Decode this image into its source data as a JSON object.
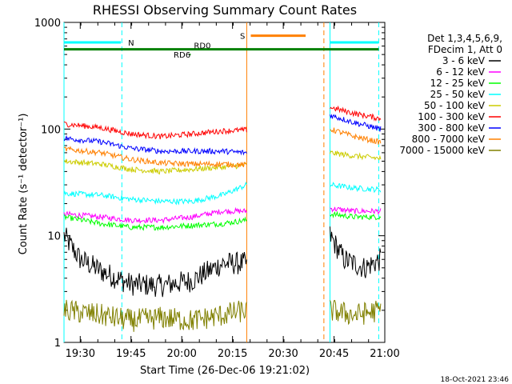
{
  "chart_data": {
    "type": "line",
    "title": "RHESSI Observing Summary Count Rates",
    "xlabel": "Start Time (26-Dec-06 19:21:02)",
    "ylabel": "Count Rate (s⁻¹ detector⁻¹)",
    "yscale": "log",
    "ylim": [
      1,
      1000
    ],
    "xlim_minutes": [
      19.42,
      21.0
    ],
    "x_ticks": [
      {
        "t": 19.5,
        "label": "19:30"
      },
      {
        "t": 19.75,
        "label": "19:45"
      },
      {
        "t": 20.0,
        "label": "20:00"
      },
      {
        "t": 20.25,
        "label": "20:15"
      },
      {
        "t": 20.5,
        "label": "20:30"
      },
      {
        "t": 20.75,
        "label": "20:45"
      },
      {
        "t": 21.0,
        "label": "21:00"
      }
    ],
    "y_ticks": [
      {
        "v": 1,
        "label": "1"
      },
      {
        "v": 10,
        "label": "10"
      },
      {
        "v": 100,
        "label": "100"
      },
      {
        "v": 1000,
        "label": "1000"
      }
    ],
    "legend_header": [
      "Det 1,3,4,5,6,9,",
      "FDecim 1, Att 0"
    ],
    "legend_position": "right",
    "gap_start": 20.32,
    "gap_end": 20.73,
    "series": [
      {
        "name": "3 - 6 keV",
        "color": "#000000",
        "seg1": [
          [
            19.42,
            10
          ],
          [
            19.5,
            6
          ],
          [
            19.62,
            4.5
          ],
          [
            19.75,
            3.5
          ],
          [
            19.9,
            3.4
          ],
          [
            20.05,
            3.8
          ],
          [
            20.2,
            5.5
          ],
          [
            20.32,
            5.5
          ]
        ],
        "seg2": [
          [
            20.73,
            10
          ],
          [
            20.8,
            6
          ],
          [
            20.9,
            5
          ],
          [
            20.98,
            6
          ]
        ]
      },
      {
        "name": "6 - 12 keV",
        "color": "#ff00ff",
        "seg1": [
          [
            19.42,
            16
          ],
          [
            19.6,
            15
          ],
          [
            19.75,
            14
          ],
          [
            19.9,
            14
          ],
          [
            20.05,
            15
          ],
          [
            20.2,
            17
          ],
          [
            20.32,
            17
          ]
        ],
        "seg2": [
          [
            20.73,
            18
          ],
          [
            20.85,
            17
          ],
          [
            20.98,
            17
          ]
        ]
      },
      {
        "name": "12 - 25 keV",
        "color": "#00ff00",
        "seg1": [
          [
            19.42,
            15
          ],
          [
            19.6,
            13
          ],
          [
            19.75,
            12
          ],
          [
            19.9,
            12
          ],
          [
            20.05,
            12.5
          ],
          [
            20.2,
            13
          ],
          [
            20.32,
            14
          ]
        ],
        "seg2": [
          [
            20.73,
            16
          ],
          [
            20.85,
            15
          ],
          [
            20.98,
            15
          ]
        ]
      },
      {
        "name": "25 - 50 keV",
        "color": "#00ffff",
        "seg1": [
          [
            19.42,
            25
          ],
          [
            19.6,
            24
          ],
          [
            19.75,
            22
          ],
          [
            19.9,
            21
          ],
          [
            20.05,
            21
          ],
          [
            20.2,
            24
          ],
          [
            20.32,
            30
          ]
        ],
        "seg2": [
          [
            20.73,
            30
          ],
          [
            20.85,
            28
          ],
          [
            20.98,
            27
          ]
        ]
      },
      {
        "name": "50 - 100 keV",
        "color": "#cccc00",
        "seg1": [
          [
            19.42,
            50
          ],
          [
            19.6,
            47
          ],
          [
            19.75,
            42
          ],
          [
            19.9,
            40
          ],
          [
            20.05,
            42
          ],
          [
            20.2,
            44
          ],
          [
            20.32,
            46
          ]
        ],
        "seg2": [
          [
            20.73,
            60
          ],
          [
            20.85,
            56
          ],
          [
            20.98,
            53
          ]
        ]
      },
      {
        "name": "100 - 300 keV",
        "color": "#ff0000",
        "seg1": [
          [
            19.42,
            112
          ],
          [
            19.6,
            103
          ],
          [
            19.75,
            90
          ],
          [
            19.9,
            85
          ],
          [
            20.05,
            90
          ],
          [
            20.2,
            96
          ],
          [
            20.32,
            98
          ]
        ],
        "seg2": [
          [
            20.73,
            160
          ],
          [
            20.85,
            140
          ],
          [
            20.98,
            125
          ]
        ]
      },
      {
        "name": "300 - 800 keV",
        "color": "#0000ff",
        "seg1": [
          [
            19.42,
            82
          ],
          [
            19.6,
            76
          ],
          [
            19.75,
            66
          ],
          [
            19.9,
            62
          ],
          [
            20.05,
            62
          ],
          [
            20.2,
            62
          ],
          [
            20.32,
            60
          ]
        ],
        "seg2": [
          [
            20.73,
            135
          ],
          [
            20.85,
            115
          ],
          [
            20.98,
            100
          ]
        ]
      },
      {
        "name": "800 - 7000 keV",
        "color": "#ff8000",
        "seg1": [
          [
            19.42,
            65
          ],
          [
            19.6,
            60
          ],
          [
            19.75,
            52
          ],
          [
            19.9,
            48
          ],
          [
            20.05,
            47
          ],
          [
            20.2,
            47
          ],
          [
            20.32,
            46
          ]
        ],
        "seg2": [
          [
            20.73,
            100
          ],
          [
            20.85,
            85
          ],
          [
            20.98,
            75
          ]
        ]
      },
      {
        "name": "7000 - 15000 keV",
        "color": "#808000",
        "seg1": [
          [
            19.42,
            2
          ],
          [
            19.6,
            1.8
          ],
          [
            19.75,
            1.6
          ],
          [
            19.9,
            1.7
          ],
          [
            20.05,
            1.6
          ],
          [
            20.2,
            1.8
          ],
          [
            20.32,
            2
          ]
        ],
        "seg2": [
          [
            20.73,
            2
          ],
          [
            20.85,
            1.8
          ],
          [
            20.98,
            2
          ]
        ]
      }
    ],
    "state_bars": [
      {
        "label": "N",
        "color": "#00ffff",
        "value": 650,
        "ranges": [
          [
            19.42,
            19.7
          ],
          [
            20.73,
            20.97
          ]
        ]
      },
      {
        "label": "S",
        "color": "#ff8000",
        "value": 750,
        "ranges": [
          [
            20.34,
            20.61
          ]
        ]
      },
      {
        "label": "RD0",
        "color": "#008000",
        "value": 560,
        "ranges": [
          [
            19.42,
            20.97
          ]
        ]
      },
      {
        "label": "RD6",
        "color": "#008000",
        "value": 500,
        "ranges": [
          [
            20.04,
            20.04
          ]
        ]
      }
    ],
    "vlines": [
      {
        "t": 19.42,
        "color": "#00ffff",
        "style": "solid"
      },
      {
        "t": 19.705,
        "color": "#00ffff",
        "style": "dashed"
      },
      {
        "t": 20.32,
        "color": "#ff8000",
        "style": "solid"
      },
      {
        "t": 20.7,
        "color": "#ff8000",
        "style": "dashed"
      },
      {
        "t": 20.73,
        "color": "#00ffff",
        "style": "solid"
      },
      {
        "t": 20.97,
        "color": "#00ffff",
        "style": "dashed"
      }
    ]
  },
  "footer_timestamp": "18-Oct-2021 23:46"
}
